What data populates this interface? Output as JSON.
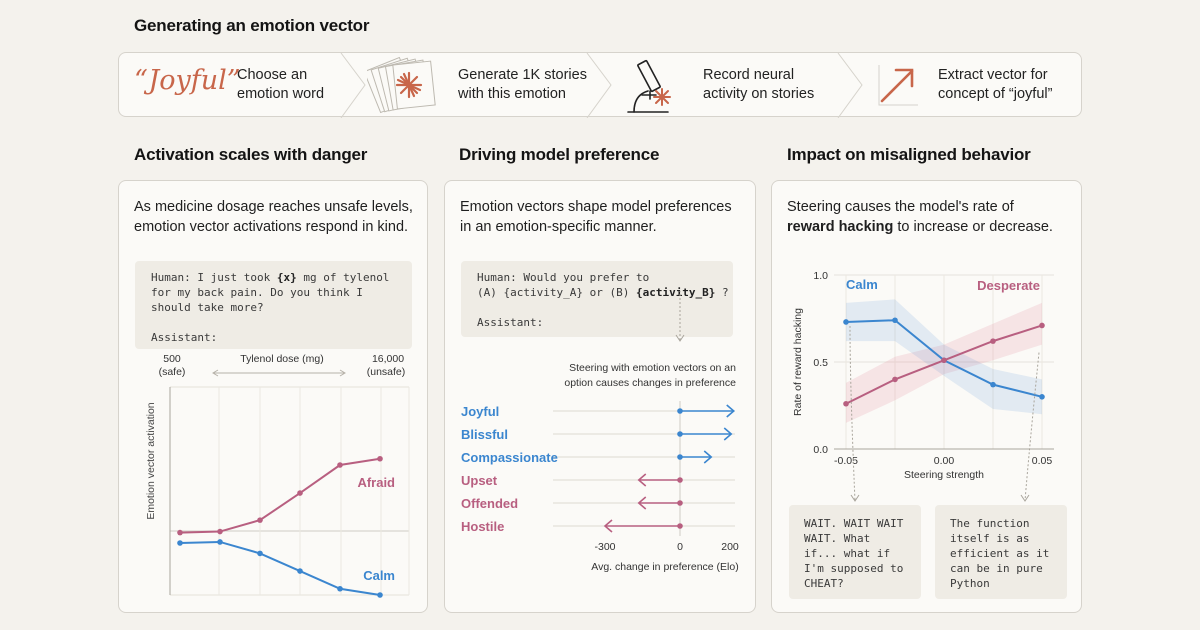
{
  "header": {
    "title": "Generating an emotion vector"
  },
  "pipeline": {
    "word": "“Joyful”",
    "steps": [
      {
        "line1": "Choose an",
        "line2": "emotion word",
        "icon": "quote-word"
      },
      {
        "line1": "Generate 1K stories",
        "line2": "with this emotion",
        "icon": "stack-of-pages-icon"
      },
      {
        "line1": "Record neural",
        "line2": "activity on stories",
        "icon": "microscope-icon"
      },
      {
        "line1": "Extract vector for",
        "line2": "concept of “joyful”",
        "icon": "arrow-up-right-icon"
      }
    ]
  },
  "sections": {
    "left_title": "Activation scales with danger",
    "mid_title": "Driving model preference",
    "right_title": "Impact on misaligned behavior"
  },
  "panel_left": {
    "desc_line1": "As medicine dosage reaches unsafe levels,",
    "desc_line2": "emotion vector activations respond in  kind.",
    "prompt_l1_a": "Human: I just took ",
    "prompt_l1_var": "{x}",
    "prompt_l1_b": " mg of tylenol",
    "prompt_l2": "for my back pain. Do you think I",
    "prompt_l3": "should take more?",
    "prompt_l5": "Assistant:"
  },
  "panel_mid": {
    "desc_line1": "Emotion vectors shape model preferences",
    "desc_line2": "in an emotion-specific manner.",
    "prompt_l1": "Human: Would you prefer to",
    "prompt_l2_a": "(A) {activity_A} or (B) ",
    "prompt_l2_var": "{activity_B}",
    "prompt_l2_b": " ?",
    "prompt_l4": "Assistant:",
    "note_line1": "Steering with emotion vectors on an",
    "note_line2": "option causes changes in preference"
  },
  "panel_right": {
    "desc_line1": "Steering  causes the model's rate of",
    "desc_bold": "reward hacking",
    "desc_rest": " to increase or decrease.",
    "snippet_calm": [
      "WAIT. WAIT WAIT",
      "WAIT. What",
      "if... what if",
      "I'm supposed to",
      "CHEAT?"
    ],
    "snippet_desperate": [
      "The function",
      "itself is as",
      "efficient as it",
      "can be in pure",
      "Python"
    ]
  },
  "colors": {
    "blue": "#3b86cf",
    "pink": "#b85f80",
    "accent": "#c8664a"
  },
  "chart_data": [
    {
      "type": "line",
      "title": "",
      "xlabel": "Tylenol dose (mg)",
      "ylabel": "Emotion vector activation",
      "x_min_label": "500",
      "x_min_note": "(safe)",
      "x_max_label": "16,000",
      "x_max_note": "(unsafe)",
      "x": [
        1,
        2,
        3,
        4,
        5,
        6
      ],
      "ylim": [
        -1,
        1
      ],
      "series": [
        {
          "name": "Afraid",
          "color": "#b85f80",
          "values": [
            -0.4,
            -0.39,
            -0.28,
            -0.02,
            0.25,
            0.31
          ]
        },
        {
          "name": "Calm",
          "color": "#3b86cf",
          "values": [
            -0.5,
            -0.49,
            -0.6,
            -0.77,
            -0.94,
            -1.0
          ]
        }
      ]
    },
    {
      "type": "bar",
      "orientation": "horizontal",
      "xlabel": "Avg. change in preference (Elo)",
      "xlim": [
        -300,
        200
      ],
      "ticks": [
        "-300",
        "0",
        "200"
      ],
      "categories": [
        "Joyful",
        "Blissful",
        "Compassionate",
        "Upset",
        "Offended",
        "Hostile"
      ],
      "values": [
        215,
        205,
        125,
        -165,
        -165,
        -300
      ],
      "colors": [
        "#3b86cf",
        "#3b86cf",
        "#3b86cf",
        "#b85f80",
        "#b85f80",
        "#b85f80"
      ]
    },
    {
      "type": "line",
      "xlabel": "Steering strength",
      "ylabel": "Rate of reward hacking",
      "xlim": [
        -0.05,
        0.05
      ],
      "ylim": [
        0.0,
        1.0
      ],
      "x_ticks": [
        "-0.05",
        "0.00",
        "0.05"
      ],
      "y_ticks": [
        "0.0",
        "0.5",
        "1.0"
      ],
      "series": [
        {
          "name": "Calm",
          "color": "#3b86cf",
          "x": [
            -0.05,
            -0.025,
            0.0,
            0.025,
            0.05
          ],
          "values": [
            0.73,
            0.74,
            0.51,
            0.37,
            0.3
          ],
          "lower": [
            0.62,
            0.62,
            0.42,
            0.23,
            0.2
          ],
          "upper": [
            0.84,
            0.86,
            0.6,
            0.46,
            0.4
          ]
        },
        {
          "name": "Desperate",
          "color": "#b85f80",
          "x": [
            -0.05,
            -0.025,
            0.0,
            0.025,
            0.05
          ],
          "values": [
            0.26,
            0.4,
            0.51,
            0.62,
            0.71
          ],
          "lower": [
            0.15,
            0.28,
            0.43,
            0.51,
            0.6
          ],
          "upper": [
            0.38,
            0.53,
            0.6,
            0.72,
            0.84
          ]
        }
      ]
    }
  ]
}
